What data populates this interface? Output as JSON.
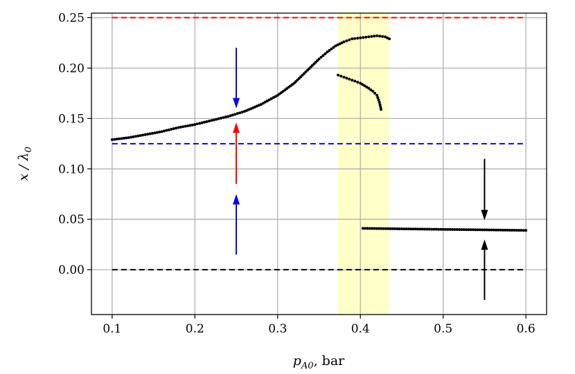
{
  "chart_data": {
    "type": "scatter",
    "title": "",
    "xlabel": "p",
    "xlabel_subscript": "A0",
    "xlabel_unit": ", bar",
    "ylabel": "x / λ",
    "ylabel_subscript": "0",
    "xlim": [
      0.075,
      0.625
    ],
    "ylim": [
      -0.0445,
      0.2545
    ],
    "grid": true,
    "xticks": [
      0.1,
      0.2,
      0.3,
      0.4,
      0.5,
      0.6
    ],
    "xtick_labels": [
      "0.1",
      "0.2",
      "0.3",
      "0.4",
      "0.5",
      "0.6"
    ],
    "yticks": [
      0.0,
      0.05,
      0.1,
      0.15,
      0.2,
      0.25
    ],
    "ytick_labels": [
      "0.00",
      "0.05",
      "0.10",
      "0.15",
      "0.20",
      "0.25"
    ],
    "highlight_band": {
      "x_range": [
        0.373,
        0.435
      ],
      "color": "#ffff99"
    },
    "hlines": [
      {
        "y": 0.25,
        "color": "#ff0000",
        "x_range": [
          0.1,
          0.6
        ]
      },
      {
        "y": 0.125,
        "color": "#0000ff",
        "x_range": [
          0.1,
          0.6
        ]
      },
      {
        "y": 0.0,
        "color": "#000000",
        "x_range": [
          0.1,
          0.6
        ]
      }
    ],
    "arrows": [
      {
        "x": 0.25,
        "from": 0.22,
        "to": 0.16,
        "color": "#0000ff"
      },
      {
        "x": 0.25,
        "from": 0.085,
        "to": 0.146,
        "color": "#ff0000"
      },
      {
        "x": 0.25,
        "from": 0.015,
        "to": 0.075,
        "color": "#0000ff"
      },
      {
        "x": 0.55,
        "from": 0.11,
        "to": 0.049,
        "color": "#000000"
      },
      {
        "x": 0.55,
        "from": -0.03,
        "to": 0.03,
        "color": "#000000"
      }
    ],
    "series": [
      {
        "color": "#000000",
        "x": [
          0.1,
          0.12,
          0.14,
          0.16,
          0.18,
          0.2,
          0.22,
          0.24,
          0.26,
          0.28,
          0.3,
          0.32,
          0.34,
          0.35,
          0.36,
          0.37,
          0.38,
          0.39,
          0.4,
          0.41,
          0.42,
          0.43,
          0.435
        ],
        "y": [
          0.129,
          0.131,
          0.134,
          0.137,
          0.141,
          0.144,
          0.148,
          0.152,
          0.157,
          0.164,
          0.173,
          0.185,
          0.201,
          0.209,
          0.216,
          0.222,
          0.226,
          0.229,
          0.23,
          0.231,
          0.232,
          0.231,
          0.229
        ]
      },
      {
        "color": "#000000",
        "x": [
          0.373,
          0.38,
          0.39,
          0.4,
          0.41,
          0.415,
          0.42,
          0.423,
          0.425
        ],
        "y": [
          0.193,
          0.191,
          0.188,
          0.185,
          0.18,
          0.177,
          0.173,
          0.166,
          0.159
        ]
      },
      {
        "color": "#000000",
        "x": [
          0.403,
          0.45,
          0.5,
          0.55,
          0.6
        ],
        "y": [
          0.041,
          0.0405,
          0.04,
          0.0395,
          0.039
        ]
      }
    ]
  }
}
